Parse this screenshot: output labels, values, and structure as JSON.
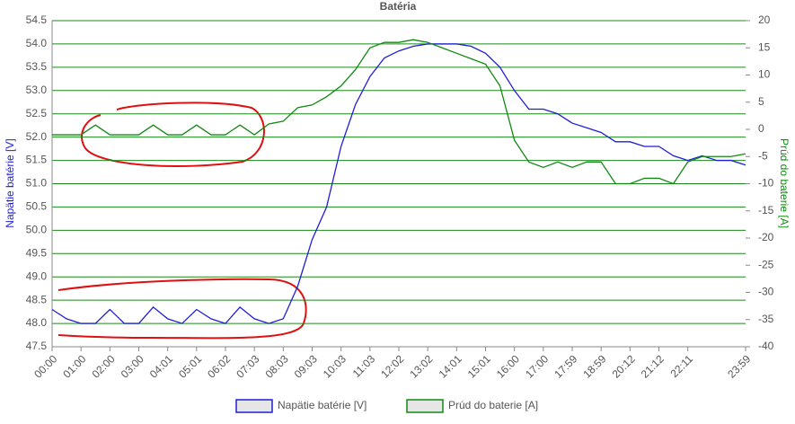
{
  "chart_data": {
    "type": "line",
    "title": "Batéria",
    "y_label": "Napätie batérie [V]",
    "y2_label": "Prúd do baterie [A]",
    "categories": [
      "00:00",
      null,
      "01:00",
      null,
      "02:00",
      null,
      "03:00",
      null,
      "04:01",
      null,
      "05:01",
      null,
      "06:02",
      null,
      "07:03",
      null,
      "08:03",
      null,
      "09:03",
      null,
      "10:03",
      null,
      "11:03",
      null,
      "12:02",
      null,
      "13:02",
      null,
      "14:01",
      null,
      "15:01",
      null,
      "16:00",
      null,
      "17:00",
      null,
      "17:59",
      null,
      "18:59",
      null,
      "20:12",
      null,
      "21:12",
      null,
      "22:11",
      null,
      null,
      null,
      "23:59"
    ],
    "series": [
      {
        "name": "Napätie batérie [V]",
        "color": "#1f1fd6",
        "axis": "y",
        "values": [
          48.3,
          48.1,
          48.0,
          48.0,
          48.3,
          48.0,
          48.0,
          48.35,
          48.1,
          48.0,
          48.3,
          48.1,
          48.0,
          48.35,
          48.1,
          48.0,
          48.1,
          48.8,
          49.8,
          50.5,
          51.8,
          52.7,
          53.3,
          53.7,
          53.85,
          53.95,
          54.0,
          54.0,
          54.0,
          53.95,
          53.8,
          53.5,
          53.0,
          52.6,
          52.6,
          52.5,
          52.3,
          52.2,
          52.1,
          51.9,
          51.9,
          51.8,
          51.8,
          51.6,
          51.5,
          51.6,
          51.5,
          51.5,
          51.4
        ]
      },
      {
        "name": "Prúd do baterie [A]",
        "color": "#108a10",
        "axis": "y2",
        "values": [
          -1,
          -1,
          -1,
          0.8,
          -1,
          -1,
          -1,
          0.8,
          -1,
          -1,
          0.8,
          -1,
          -1,
          0.8,
          -1,
          1,
          1.5,
          4,
          4.5,
          6,
          8,
          11,
          15,
          16,
          16,
          16.5,
          16,
          15,
          14,
          13,
          12,
          8,
          -2,
          -6,
          -7,
          -6,
          -7,
          -6,
          -6,
          -10,
          -10,
          -9,
          -9,
          -10,
          -6,
          -5,
          -5,
          -5,
          -4.5
        ]
      }
    ],
    "ylim": [
      47.5,
      54.5
    ],
    "yticks": [
      {
        "value": 47.5,
        "label": "47.5"
      },
      {
        "value": 48,
        "label": "48.0"
      },
      {
        "value": 48.5,
        "label": "48.5"
      },
      {
        "value": 49,
        "label": "49.0"
      },
      {
        "value": 49.5,
        "label": "49.5"
      },
      {
        "value": 50,
        "label": "50.0"
      },
      {
        "value": 50.5,
        "label": "50.5"
      },
      {
        "value": 51,
        "label": "51.0"
      },
      {
        "value": 51.5,
        "label": "51.5"
      },
      {
        "value": 52,
        "label": "52.0"
      },
      {
        "value": 52.5,
        "label": "52.5"
      },
      {
        "value": 53,
        "label": "53.0"
      },
      {
        "value": 53.5,
        "label": "53.5"
      },
      {
        "value": 54,
        "label": "54.0"
      },
      {
        "value": 54.5,
        "label": "54.5"
      }
    ],
    "y2lim": [
      -40,
      20
    ],
    "y2ticks": [
      -40,
      -35,
      -30,
      -25,
      -20,
      -15,
      -10,
      -5,
      0,
      5,
      10,
      15,
      20
    ],
    "grid": true,
    "grid_color": "#1a8a1a",
    "legend": "bottom"
  }
}
